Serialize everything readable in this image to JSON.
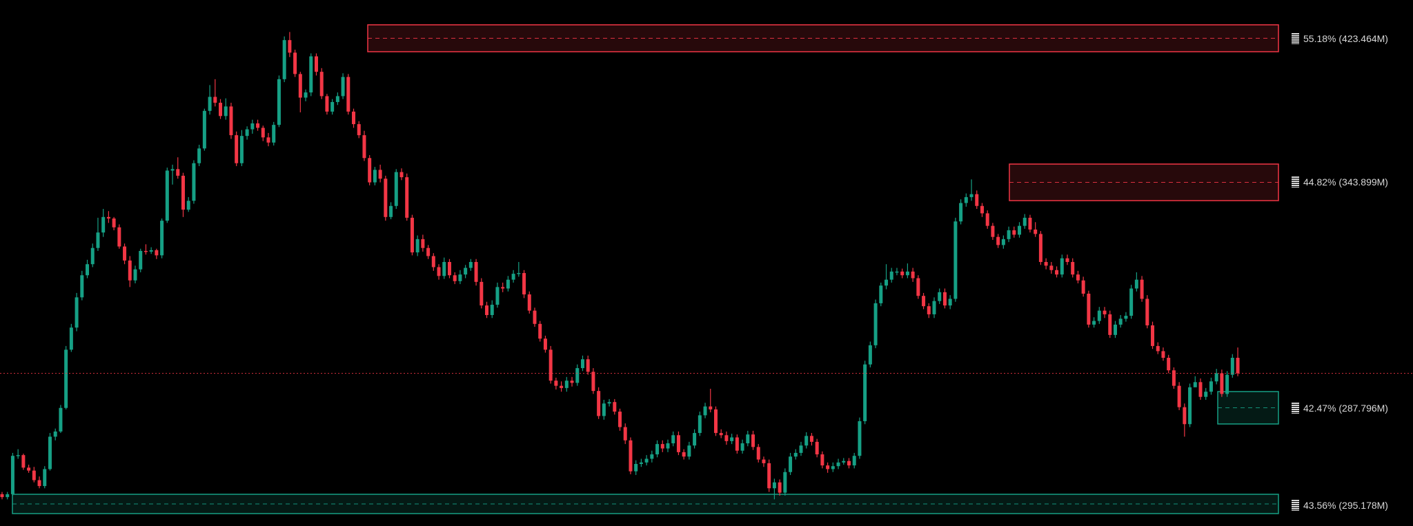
{
  "chart_data": {
    "type": "candlestick",
    "title": "",
    "xlabel": "",
    "ylabel": "",
    "grid": false,
    "colors": {
      "up": "#16a085",
      "down": "#f23645",
      "background": "#000000",
      "supply_zone": "#f23645",
      "demand_zone": "#16a085",
      "current_price_line": "#f23645"
    },
    "levels": [
      {
        "label": "55.18% (423.464M)",
        "kind": "supply"
      },
      {
        "label": "44.82% (343.899M)",
        "kind": "supply"
      },
      {
        "label": "42.47% (287.796M)",
        "kind": "demand"
      },
      {
        "label": "43.56% (295.178M)",
        "kind": "demand"
      }
    ],
    "candles_note": "approximate shape relative values (no price axis visible)",
    "candles": [
      [
        36.7,
        36.3,
        37.0,
        36.0
      ],
      [
        36.3,
        36.7,
        37.0,
        36.0
      ],
      [
        36.7,
        41.9,
        42.3,
        36.5
      ],
      [
        41.9,
        42.0,
        42.8,
        41.5
      ],
      [
        42.0,
        40.3,
        42.2,
        40.0
      ],
      [
        40.3,
        39.9,
        40.7,
        39.6
      ],
      [
        39.9,
        38.6,
        40.4,
        38.3
      ],
      [
        38.6,
        37.8,
        39.1,
        37.5
      ],
      [
        37.8,
        40.1,
        40.5,
        37.5
      ],
      [
        40.1,
        44.5,
        45.0,
        39.9
      ],
      [
        44.5,
        45.2,
        45.6,
        44.0
      ],
      [
        45.2,
        48.4,
        48.8,
        45.0
      ],
      [
        48.4,
        56.3,
        56.8,
        48.2
      ],
      [
        56.3,
        59.3,
        59.8,
        56.0
      ],
      [
        59.3,
        63.4,
        64.0,
        58.8
      ],
      [
        63.4,
        66.4,
        67.0,
        63.0
      ],
      [
        66.4,
        67.9,
        68.5,
        66.0
      ],
      [
        67.9,
        70.1,
        70.7,
        67.5
      ],
      [
        70.1,
        72.2,
        74.2,
        69.7
      ],
      [
        72.2,
        74.3,
        75.4,
        71.6
      ],
      [
        74.3,
        74.1,
        75.1,
        73.5
      ],
      [
        74.1,
        72.9,
        74.3,
        72.5
      ],
      [
        72.9,
        70.3,
        73.3,
        70.0
      ],
      [
        70.3,
        68.4,
        70.7,
        67.9
      ],
      [
        68.4,
        65.7,
        69.0,
        64.8
      ],
      [
        65.7,
        67.2,
        67.7,
        65.3
      ],
      [
        67.2,
        69.7,
        70.0,
        66.8
      ],
      [
        69.7,
        69.6,
        70.6,
        69.2
      ],
      [
        69.6,
        69.8,
        70.2,
        69.3
      ],
      [
        69.8,
        69.1,
        70.0,
        68.6
      ],
      [
        69.1,
        73.8,
        74.1,
        68.7
      ],
      [
        73.8,
        80.6,
        81.0,
        73.5
      ],
      [
        80.6,
        80.8,
        81.4,
        78.7
      ],
      [
        80.8,
        79.9,
        82.4,
        79.5
      ],
      [
        79.9,
        75.3,
        80.3,
        74.3
      ],
      [
        75.3,
        76.5,
        77.0,
        75.0
      ],
      [
        76.5,
        81.6,
        82.0,
        76.1
      ],
      [
        81.6,
        83.6,
        84.1,
        81.2
      ],
      [
        83.6,
        88.7,
        89.0,
        83.3
      ],
      [
        88.7,
        90.6,
        92.2,
        88.2
      ],
      [
        90.6,
        89.8,
        93.0,
        89.3
      ],
      [
        89.8,
        88.0,
        90.3,
        87.6
      ],
      [
        88.0,
        89.3,
        90.4,
        87.5
      ],
      [
        89.3,
        85.4,
        89.8,
        84.9
      ],
      [
        85.4,
        81.6,
        85.9,
        81.2
      ],
      [
        81.6,
        85.3,
        86.1,
        81.2
      ],
      [
        85.3,
        86.2,
        86.6,
        84.8
      ],
      [
        86.2,
        87.0,
        87.5,
        85.6
      ],
      [
        87.0,
        86.4,
        87.5,
        86.0
      ],
      [
        86.4,
        85.1,
        86.7,
        84.6
      ],
      [
        85.1,
        84.4,
        85.7,
        83.9
      ],
      [
        84.4,
        86.8,
        87.2,
        84.0
      ],
      [
        86.8,
        93.0,
        93.5,
        86.5
      ],
      [
        93.0,
        98.3,
        98.8,
        92.6
      ],
      [
        98.3,
        96.6,
        99.4,
        96.0
      ],
      [
        96.6,
        93.7,
        97.0,
        93.3
      ],
      [
        93.7,
        90.5,
        94.0,
        88.5
      ],
      [
        90.5,
        91.2,
        91.6,
        90.0
      ],
      [
        91.2,
        96.1,
        96.5,
        90.7
      ],
      [
        96.1,
        94.0,
        96.5,
        93.5
      ],
      [
        94.0,
        90.7,
        94.5,
        90.3
      ],
      [
        90.7,
        88.6,
        91.0,
        88.2
      ],
      [
        88.6,
        89.9,
        90.3,
        88.2
      ],
      [
        89.9,
        90.7,
        91.2,
        89.5
      ],
      [
        90.7,
        93.3,
        93.8,
        90.3
      ],
      [
        93.3,
        88.6,
        93.7,
        88.2
      ],
      [
        88.6,
        86.9,
        89.0,
        86.4
      ],
      [
        86.9,
        85.4,
        87.3,
        85.0
      ],
      [
        85.4,
        82.3,
        86.0,
        81.9
      ],
      [
        82.3,
        79.0,
        82.7,
        78.6
      ],
      [
        79.0,
        80.7,
        81.1,
        78.6
      ],
      [
        80.7,
        79.5,
        81.4,
        79.0
      ],
      [
        79.5,
        74.3,
        79.9,
        73.8
      ],
      [
        74.3,
        75.8,
        76.3,
        74.0
      ],
      [
        75.8,
        80.4,
        80.8,
        75.4
      ],
      [
        80.4,
        79.7,
        80.9,
        79.3
      ],
      [
        79.7,
        74.2,
        80.2,
        73.8
      ],
      [
        74.2,
        69.5,
        74.6,
        69.1
      ],
      [
        69.5,
        71.3,
        71.8,
        69.0
      ],
      [
        71.3,
        70.1,
        71.9,
        69.6
      ],
      [
        70.1,
        69.0,
        70.5,
        68.6
      ],
      [
        69.0,
        67.5,
        69.4,
        67.0
      ],
      [
        67.5,
        66.3,
        67.9,
        65.8
      ],
      [
        66.3,
        68.2,
        68.8,
        65.9
      ],
      [
        68.2,
        66.4,
        68.6,
        66.0
      ],
      [
        66.4,
        65.6,
        66.8,
        65.2
      ],
      [
        65.6,
        66.5,
        67.1,
        65.2
      ],
      [
        66.5,
        67.4,
        67.8,
        66.0
      ],
      [
        67.4,
        68.2,
        68.6,
        67.0
      ],
      [
        68.2,
        65.5,
        68.6,
        65.0
      ],
      [
        65.5,
        62.3,
        66.0,
        61.9
      ],
      [
        62.3,
        61.0,
        62.8,
        60.6
      ],
      [
        61.0,
        62.4,
        63.0,
        60.6
      ],
      [
        62.4,
        64.8,
        65.4,
        62.0
      ],
      [
        64.8,
        64.6,
        65.4,
        64.1
      ],
      [
        64.6,
        65.8,
        66.3,
        64.2
      ],
      [
        65.8,
        66.6,
        67.1,
        65.4
      ],
      [
        66.6,
        66.7,
        68.2,
        66.2
      ],
      [
        66.7,
        63.8,
        67.1,
        63.3
      ],
      [
        63.8,
        61.6,
        64.2,
        61.2
      ],
      [
        61.6,
        59.8,
        62.0,
        59.4
      ],
      [
        59.8,
        57.8,
        60.2,
        57.4
      ],
      [
        57.8,
        56.3,
        58.2,
        55.9
      ],
      [
        56.3,
        52.1,
        56.8,
        51.7
      ],
      [
        52.1,
        51.4,
        52.5,
        50.9
      ],
      [
        51.4,
        51.1,
        52.0,
        50.6
      ],
      [
        51.1,
        52.1,
        52.6,
        50.6
      ],
      [
        52.1,
        51.8,
        52.6,
        51.3
      ],
      [
        51.8,
        53.8,
        54.3,
        51.4
      ],
      [
        53.8,
        55.0,
        55.5,
        53.4
      ],
      [
        55.0,
        53.3,
        55.5,
        52.9
      ],
      [
        53.3,
        50.7,
        53.8,
        50.3
      ],
      [
        50.7,
        47.3,
        51.2,
        46.9
      ],
      [
        47.3,
        49.0,
        49.5,
        46.8
      ],
      [
        49.0,
        49.2,
        49.6,
        48.6
      ],
      [
        49.2,
        47.9,
        49.6,
        47.5
      ],
      [
        47.9,
        45.8,
        48.3,
        45.3
      ],
      [
        45.8,
        44.0,
        46.3,
        43.5
      ],
      [
        44.0,
        39.8,
        44.4,
        39.4
      ],
      [
        39.8,
        40.8,
        41.3,
        39.3
      ],
      [
        40.8,
        41.0,
        41.5,
        40.4
      ],
      [
        41.0,
        41.5,
        42.0,
        40.6
      ],
      [
        41.5,
        42.1,
        42.6,
        41.0
      ],
      [
        42.1,
        43.5,
        44.0,
        41.7
      ],
      [
        43.5,
        42.9,
        44.0,
        42.4
      ],
      [
        42.9,
        43.6,
        44.1,
        42.4
      ],
      [
        43.6,
        44.7,
        45.2,
        43.2
      ],
      [
        44.7,
        42.4,
        45.2,
        42.0
      ],
      [
        42.4,
        41.8,
        42.8,
        41.4
      ],
      [
        41.8,
        43.3,
        43.8,
        41.4
      ],
      [
        43.3,
        45.0,
        45.5,
        42.9
      ],
      [
        45.0,
        47.4,
        47.9,
        44.6
      ],
      [
        47.4,
        48.6,
        49.1,
        47.0
      ],
      [
        48.6,
        48.2,
        51.0,
        47.8
      ],
      [
        48.2,
        45.0,
        48.6,
        44.6
      ],
      [
        45.0,
        44.7,
        45.5,
        44.3
      ],
      [
        44.7,
        43.9,
        45.2,
        43.4
      ],
      [
        43.9,
        44.4,
        44.9,
        43.5
      ],
      [
        44.4,
        42.6,
        44.8,
        42.2
      ],
      [
        42.6,
        43.6,
        44.1,
        42.2
      ],
      [
        43.6,
        44.8,
        45.3,
        43.2
      ],
      [
        44.8,
        43.1,
        45.3,
        42.7
      ],
      [
        43.1,
        41.4,
        43.5,
        41.0
      ],
      [
        41.4,
        40.9,
        41.8,
        40.4
      ],
      [
        40.9,
        37.5,
        41.4,
        37.0
      ],
      [
        37.5,
        38.3,
        38.8,
        36.0
      ],
      [
        38.3,
        36.9,
        38.7,
        36.5
      ],
      [
        36.9,
        39.7,
        40.2,
        36.5
      ],
      [
        39.7,
        41.8,
        42.3,
        39.3
      ],
      [
        41.8,
        42.3,
        42.8,
        41.4
      ],
      [
        42.3,
        43.3,
        43.8,
        41.9
      ],
      [
        43.3,
        44.6,
        45.1,
        42.9
      ],
      [
        44.6,
        43.8,
        45.0,
        43.3
      ],
      [
        43.8,
        42.1,
        44.2,
        41.7
      ],
      [
        42.1,
        40.6,
        42.5,
        40.2
      ],
      [
        40.6,
        40.1,
        41.0,
        39.6
      ],
      [
        40.1,
        40.5,
        41.0,
        39.7
      ],
      [
        40.5,
        41.0,
        41.5,
        40.1
      ],
      [
        41.0,
        41.2,
        41.6,
        40.7
      ],
      [
        41.2,
        40.6,
        41.6,
        40.2
      ],
      [
        40.6,
        41.9,
        42.3,
        40.2
      ],
      [
        41.9,
        46.6,
        47.1,
        41.5
      ],
      [
        46.6,
        54.3,
        54.8,
        46.2
      ],
      [
        54.3,
        56.9,
        57.4,
        53.9
      ],
      [
        56.9,
        62.6,
        63.1,
        56.5
      ],
      [
        62.6,
        65.0,
        65.4,
        62.2
      ],
      [
        65.0,
        65.8,
        67.9,
        64.5
      ],
      [
        65.8,
        66.9,
        67.4,
        65.4
      ],
      [
        66.9,
        66.9,
        67.4,
        66.4
      ],
      [
        66.9,
        66.4,
        67.3,
        66.0
      ],
      [
        66.4,
        66.9,
        68.0,
        66.0
      ],
      [
        66.9,
        66.0,
        67.4,
        65.5
      ],
      [
        66.0,
        63.6,
        66.4,
        63.2
      ],
      [
        63.6,
        62.2,
        64.0,
        61.8
      ],
      [
        62.2,
        61.1,
        62.6,
        60.6
      ],
      [
        61.1,
        62.9,
        63.4,
        60.6
      ],
      [
        62.9,
        64.1,
        64.6,
        62.5
      ],
      [
        64.1,
        62.3,
        64.6,
        61.9
      ],
      [
        62.3,
        63.2,
        63.7,
        61.8
      ],
      [
        63.2,
        73.7,
        74.2,
        62.8
      ],
      [
        73.7,
        76.2,
        76.7,
        73.3
      ],
      [
        76.2,
        77.0,
        77.5,
        75.7
      ],
      [
        77.0,
        77.4,
        79.4,
        76.5
      ],
      [
        77.4,
        75.8,
        77.9,
        75.4
      ],
      [
        75.8,
        74.8,
        76.2,
        74.3
      ],
      [
        74.8,
        73.1,
        75.2,
        72.7
      ],
      [
        73.1,
        71.6,
        73.5,
        71.2
      ],
      [
        71.6,
        70.5,
        72.0,
        70.1
      ],
      [
        70.5,
        71.3,
        71.8,
        70.0
      ],
      [
        71.3,
        72.5,
        73.0,
        70.9
      ],
      [
        72.5,
        71.9,
        73.0,
        71.5
      ],
      [
        71.9,
        73.1,
        73.6,
        71.5
      ],
      [
        73.1,
        74.2,
        74.7,
        72.7
      ],
      [
        74.2,
        72.6,
        74.6,
        72.2
      ],
      [
        72.6,
        72.0,
        73.6,
        71.6
      ],
      [
        72.0,
        68.2,
        72.4,
        67.8
      ],
      [
        68.2,
        67.7,
        68.7,
        67.2
      ],
      [
        67.7,
        67.1,
        68.2,
        66.6
      ],
      [
        67.1,
        66.5,
        67.6,
        66.1
      ],
      [
        66.5,
        68.7,
        69.2,
        66.1
      ],
      [
        68.7,
        68.2,
        69.2,
        67.8
      ],
      [
        68.2,
        66.5,
        68.7,
        66.1
      ],
      [
        66.5,
        65.7,
        67.0,
        65.3
      ],
      [
        65.7,
        63.9,
        66.2,
        63.5
      ],
      [
        63.9,
        59.7,
        64.3,
        59.3
      ],
      [
        59.7,
        60.2,
        60.7,
        59.3
      ],
      [
        60.2,
        61.6,
        62.1,
        59.8
      ],
      [
        61.6,
        61.1,
        62.1,
        60.6
      ],
      [
        61.1,
        58.3,
        61.6,
        57.9
      ],
      [
        58.3,
        59.7,
        60.2,
        57.9
      ],
      [
        59.7,
        60.5,
        61.0,
        59.3
      ],
      [
        60.5,
        60.9,
        61.4,
        60.1
      ],
      [
        60.9,
        64.6,
        65.1,
        60.5
      ],
      [
        64.6,
        65.8,
        66.8,
        64.2
      ],
      [
        65.8,
        63.2,
        66.3,
        62.8
      ],
      [
        63.2,
        59.6,
        63.7,
        59.2
      ],
      [
        59.6,
        56.8,
        60.1,
        56.4
      ],
      [
        56.8,
        56.1,
        57.3,
        55.7
      ],
      [
        56.1,
        55.2,
        56.6,
        54.8
      ],
      [
        55.2,
        53.5,
        55.6,
        53.1
      ],
      [
        53.5,
        51.4,
        53.9,
        51.0
      ],
      [
        51.4,
        48.5,
        51.9,
        48.1
      ],
      [
        48.5,
        46.2,
        49.0,
        44.5
      ],
      [
        46.2,
        51.2,
        51.7,
        45.8
      ],
      [
        51.2,
        51.9,
        52.7,
        51.5
      ],
      [
        51.9,
        49.9,
        52.4,
        49.5
      ],
      [
        49.9,
        50.6,
        51.1,
        49.5
      ],
      [
        50.6,
        52.0,
        52.5,
        50.2
      ],
      [
        52.0,
        53.1,
        53.7,
        51.6
      ],
      [
        53.1,
        50.3,
        53.6,
        49.9
      ],
      [
        50.3,
        52.9,
        53.4,
        49.9
      ],
      [
        52.9,
        55.2,
        55.7,
        52.5
      ],
      [
        55.2,
        53.1,
        56.6,
        52.7
      ]
    ]
  }
}
